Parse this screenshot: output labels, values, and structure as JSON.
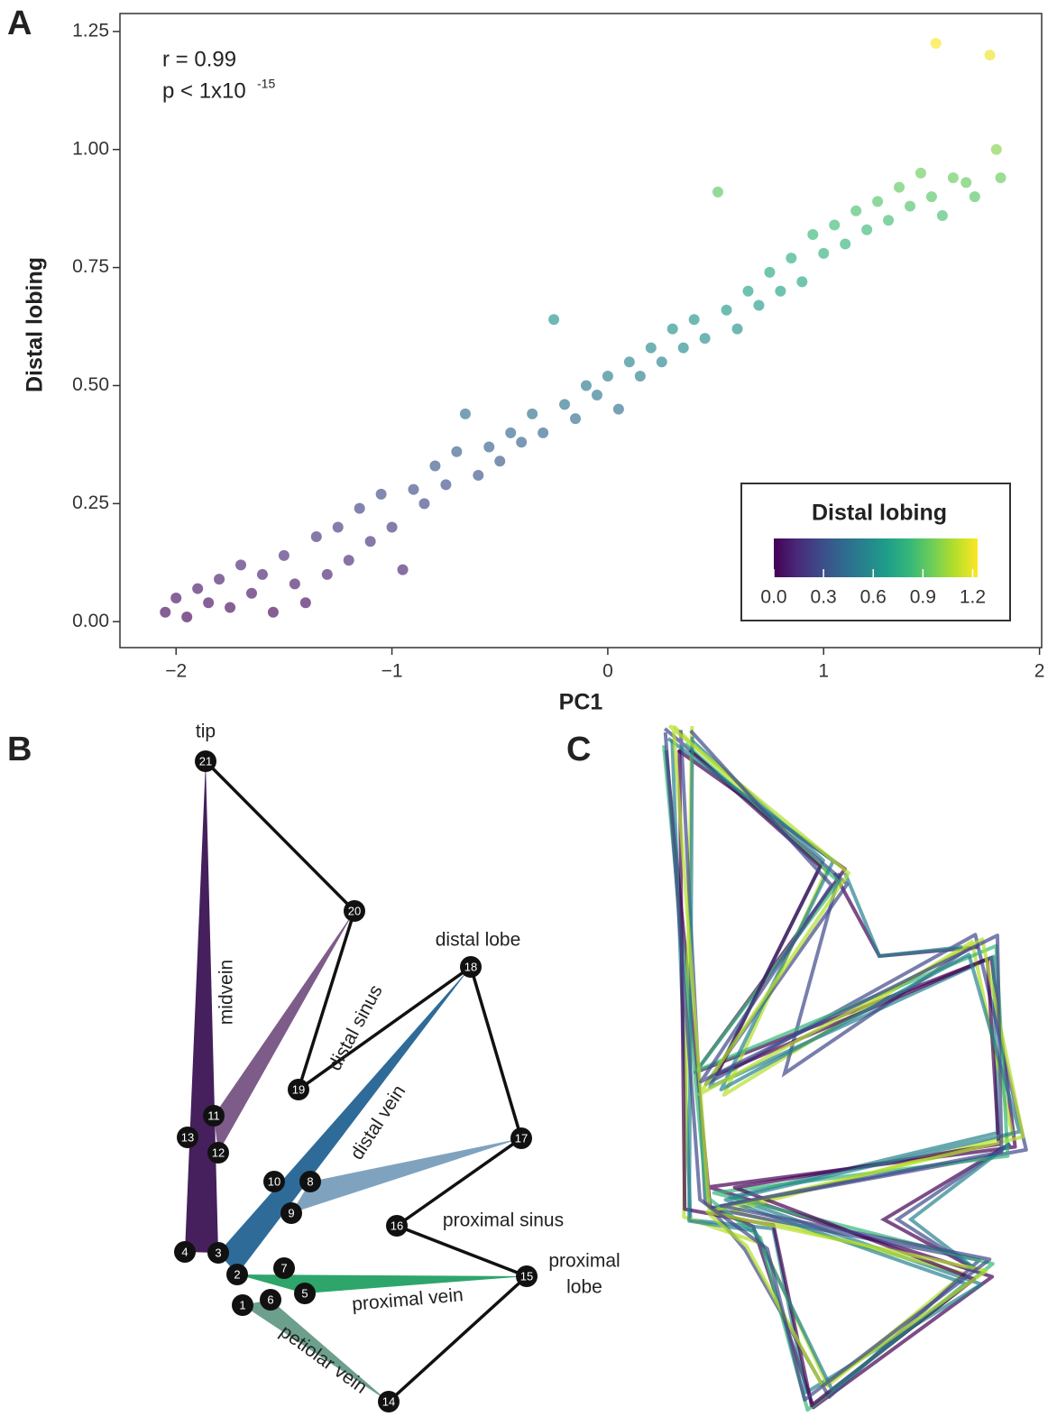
{
  "panel_labels": [
    "A",
    "B",
    "C"
  ],
  "chart_data": {
    "type": "scatter",
    "x_label": "PC1",
    "y_label": "Distal lobing",
    "annotations": [
      "r = 0.99",
      "p < 1x10",
      "-15"
    ],
    "x": [
      -2.05,
      -2.0,
      -1.95,
      -1.9,
      -1.85,
      -1.8,
      -1.75,
      -1.7,
      -1.65,
      -1.6,
      -1.55,
      -1.5,
      -1.45,
      -1.4,
      -1.35,
      -1.3,
      -1.25,
      -1.2,
      -1.15,
      -1.1,
      -1.05,
      -1.0,
      -0.95,
      -0.9,
      -0.85,
      -0.8,
      -0.75,
      -0.7,
      -0.66,
      -0.6,
      -0.55,
      -0.5,
      -0.45,
      -0.4,
      -0.35,
      -0.3,
      -0.25,
      -0.2,
      -0.15,
      -0.1,
      -0.05,
      0,
      0.05,
      0.1,
      0.15,
      0.2,
      0.25,
      0.3,
      0.35,
      0.4,
      0.45,
      0.51,
      0.55,
      0.6,
      0.65,
      0.7,
      0.75,
      0.8,
      0.85,
      0.9,
      0.95,
      1.0,
      1.05,
      1.1,
      1.15,
      1.2,
      1.25,
      1.3,
      1.35,
      1.4,
      1.45,
      1.5,
      1.52,
      1.55,
      1.6,
      1.66,
      1.7,
      1.77,
      1.8,
      1.82
    ],
    "values": [
      0.02,
      0.05,
      0.01,
      0.07,
      0.04,
      0.09,
      0.03,
      0.12,
      0.06,
      0.1,
      0.02,
      0.14,
      0.08,
      0.04,
      0.18,
      0.1,
      0.2,
      0.13,
      0.24,
      0.17,
      0.27,
      0.2,
      0.11,
      0.28,
      0.25,
      0.33,
      0.29,
      0.36,
      0.44,
      0.31,
      0.37,
      0.34,
      0.4,
      0.38,
      0.44,
      0.4,
      0.64,
      0.46,
      0.43,
      0.5,
      0.48,
      0.52,
      0.45,
      0.55,
      0.52,
      0.58,
      0.55,
      0.62,
      0.58,
      0.64,
      0.6,
      0.91,
      0.66,
      0.62,
      0.7,
      0.67,
      0.74,
      0.7,
      0.77,
      0.72,
      0.82,
      0.78,
      0.84,
      0.8,
      0.87,
      0.83,
      0.89,
      0.85,
      0.92,
      0.88,
      0.95,
      0.9,
      1.225,
      0.86,
      0.94,
      0.93,
      0.9,
      1.2,
      1.0,
      0.94
    ],
    "xlim": [
      -2.26,
      2.01
    ],
    "ylim": [
      -0.055,
      1.288
    ],
    "xticks": [
      {
        "value": -2,
        "label": "−2"
      },
      {
        "value": -1,
        "label": "−1"
      },
      0,
      1,
      2
    ],
    "yticks": [
      {
        "value": 0,
        "label": "0.00"
      },
      0.25,
      {
        "value": 0.5,
        "label": "0.50"
      },
      0.75,
      {
        "value": 1,
        "label": "1.00"
      },
      1.25
    ],
    "legend": {
      "title": "Distal lobing",
      "corner": "bottom-right",
      "colorlim": [
        0,
        1.23
      ],
      "ticks": [
        {
          "value": 0,
          "label": "0.0"
        },
        0.3,
        0.6,
        0.9,
        1.2
      ]
    },
    "colormap": [
      "#440154",
      "#482878",
      "#3e4989",
      "#31688e",
      "#26828e",
      "#1f9e89",
      "#35b779",
      "#6ece58",
      "#b5de2b",
      "#fde725"
    ]
  },
  "landmark_diagram": {
    "landmarks": [
      "1",
      "2",
      "3",
      "4",
      "5",
      "6",
      "7",
      "8",
      "9",
      "10",
      "11",
      "12",
      "13",
      "14",
      "15",
      "16",
      "17",
      "18",
      "19",
      "20",
      "21"
    ],
    "region_labels": [
      "tip",
      "midvein",
      "distal sinus",
      "distal lobe",
      "distal vein",
      "proximal sinus",
      "proximal",
      "lobe",
      "proximal vein",
      "petiolar vein"
    ]
  }
}
